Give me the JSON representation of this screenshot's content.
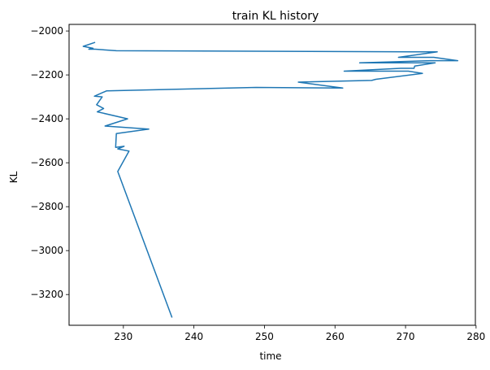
{
  "chart_data": {
    "type": "line",
    "title": "train KL history",
    "xlabel": "time",
    "ylabel": "KL",
    "xlim": [
      222.3,
      279.9
    ],
    "ylim": [
      -3340,
      -1970
    ],
    "xticks": [
      230,
      240,
      250,
      260,
      270,
      280
    ],
    "yticks": [
      -2000,
      -2200,
      -2400,
      -2600,
      -2800,
      -3000,
      -3200
    ],
    "xtick_labels": [
      "230",
      "240",
      "250",
      "260",
      "270",
      "280"
    ],
    "ytick_labels": [
      "−2000",
      "−2200",
      "−2400",
      "−2600",
      "−2800",
      "−3000",
      "−3200"
    ],
    "grid": false,
    "line_color": "#1f77b4",
    "series": [
      {
        "x": [
          226.0,
          224.3,
          225.7,
          225.1,
          226.0,
          229.0,
          274.5,
          269.0,
          274.0,
          277.4,
          273.5,
          263.5,
          274.2,
          271.3,
          271.2,
          269.3,
          261.3,
          270.4,
          272.4,
          265.8,
          265.2,
          254.8,
          261.1,
          248.8,
          227.6,
          225.9,
          227.0,
          226.2,
          227.2,
          226.3,
          230.6,
          227.4,
          233.6,
          229.0,
          228.9,
          230.1,
          229.2,
          230.8,
          229.2,
          236.9
        ],
        "y": [
          -2052,
          -2070,
          -2079,
          -2083,
          -2083,
          -2090,
          -2095,
          -2120,
          -2120,
          -2135,
          -2135,
          -2145,
          -2145,
          -2160,
          -2170,
          -2170,
          -2183,
          -2183,
          -2193,
          -2220,
          -2225,
          -2233,
          -2260,
          -2257,
          -2273,
          -2297,
          -2300,
          -2336,
          -2353,
          -2368,
          -2400,
          -2433,
          -2447,
          -2467,
          -2530,
          -2525,
          -2537,
          -2547,
          -2640,
          -3305
        ]
      }
    ]
  }
}
